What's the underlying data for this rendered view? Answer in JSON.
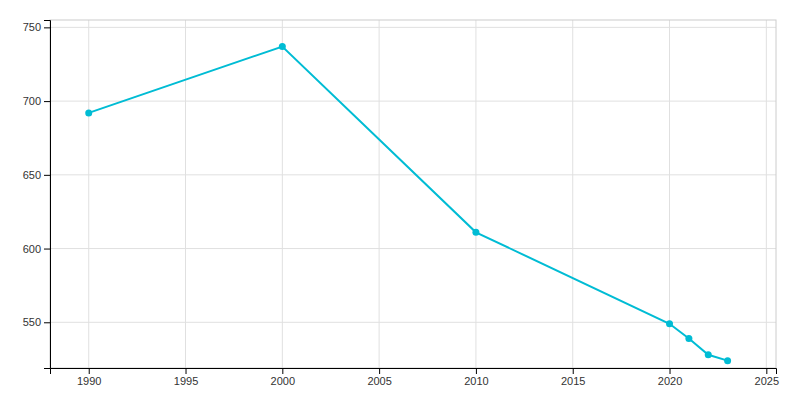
{
  "chart_data": {
    "type": "line",
    "x": [
      1990,
      2000,
      2010,
      2020,
      2021,
      2022,
      2023
    ],
    "values": [
      692,
      737,
      611,
      549,
      539,
      528,
      524
    ],
    "color": "#00bcd4",
    "marker": "circle",
    "xlim": [
      1988,
      2025.5
    ],
    "ylim": [
      519,
      755
    ],
    "xticks": [
      1990,
      1995,
      2000,
      2005,
      2010,
      2015,
      2020,
      2025
    ],
    "yticks": [
      550,
      600,
      650,
      700,
      750
    ],
    "grid": true
  }
}
